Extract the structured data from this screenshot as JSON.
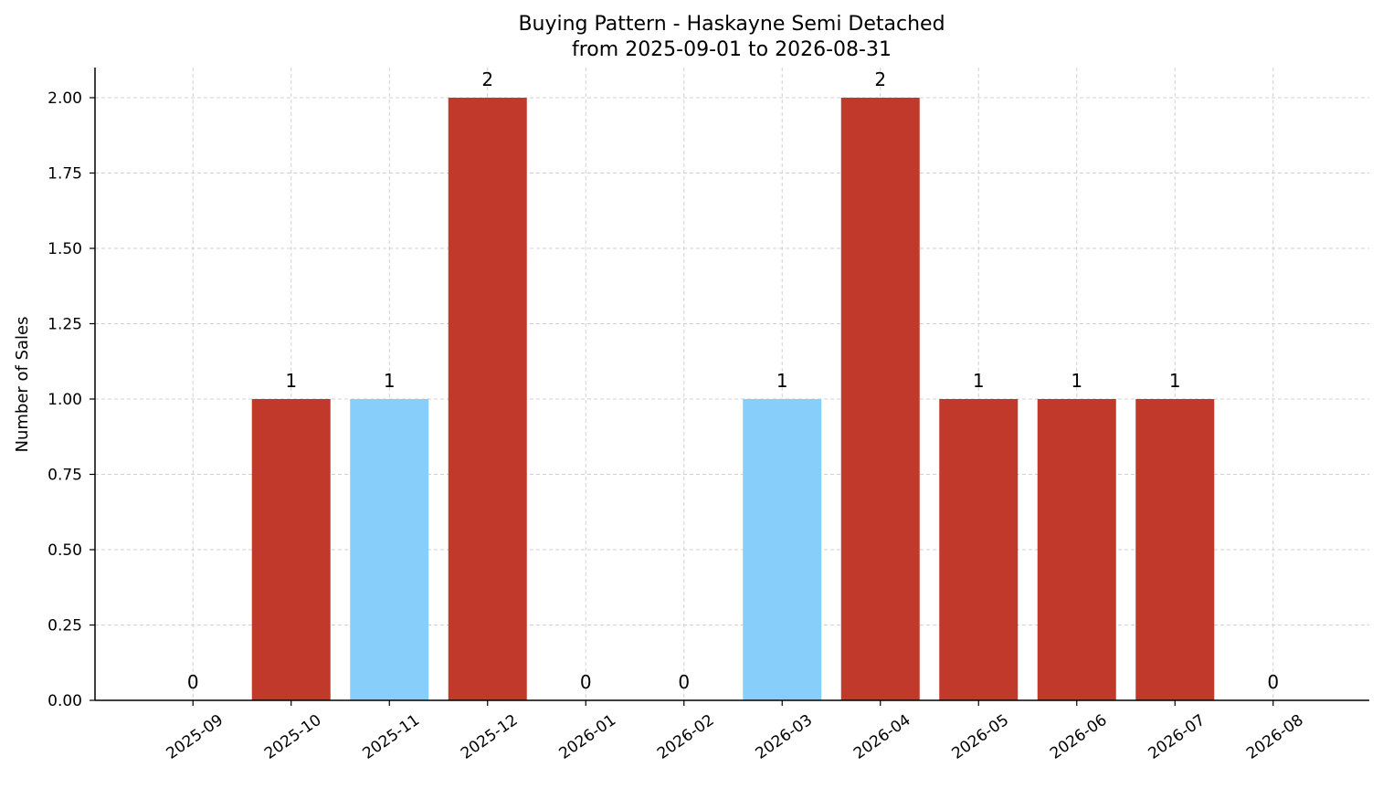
{
  "chart_data": {
    "type": "bar",
    "title": "Buying Pattern - Haskayne Semi Detached",
    "subtitle": "from 2025-09-01 to 2026-08-31",
    "xlabel": "",
    "ylabel": "Number of Sales",
    "categories": [
      "2025-09",
      "2025-10",
      "2025-11",
      "2025-12",
      "2026-01",
      "2026-02",
      "2026-03",
      "2026-04",
      "2026-05",
      "2026-06",
      "2026-07",
      "2026-08"
    ],
    "values": [
      0,
      1,
      1,
      2,
      0,
      0,
      1,
      2,
      1,
      1,
      1,
      0
    ],
    "data_labels": [
      "0",
      "1",
      "1",
      "2",
      "0",
      "0",
      "1",
      "2",
      "1",
      "1",
      "1",
      "0"
    ],
    "bar_colors": [
      "#c0392b",
      "#c0392b",
      "#87cefa",
      "#c0392b",
      "#c0392b",
      "#c0392b",
      "#87cefa",
      "#c0392b",
      "#c0392b",
      "#c0392b",
      "#c0392b",
      "#c0392b"
    ],
    "ylim": [
      0,
      2.1
    ],
    "yticks": [
      0,
      0.25,
      0.5,
      0.75,
      1.0,
      1.25,
      1.5,
      1.75,
      2.0
    ],
    "ytick_labels": [
      "0.00",
      "0.25",
      "0.50",
      "0.75",
      "1.00",
      "1.25",
      "1.50",
      "1.75",
      "2.00"
    ],
    "grid": true,
    "legend": "none"
  }
}
